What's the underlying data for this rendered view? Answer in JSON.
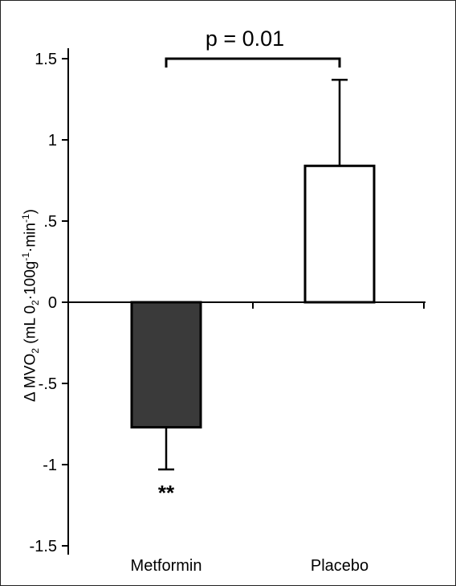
{
  "chart_data": {
    "type": "bar",
    "categories": [
      "Metformin",
      "Placebo"
    ],
    "values": [
      -0.77,
      0.84
    ],
    "error_bars": [
      0.26,
      0.53
    ],
    "bar_colors": [
      "#3a3a3a",
      "#ffffff"
    ],
    "ylim": [
      -1.5,
      1.5
    ],
    "yticks": [
      -1.5,
      -1,
      -0.5,
      0,
      0.5,
      1,
      1.5
    ],
    "ytick_labels": [
      "-1.5",
      "-1",
      "-.5",
      "0",
      ".5",
      "1",
      "1.5"
    ],
    "ylabel": {
      "prefix": "Δ MVO",
      "sub1": "2",
      "mid1": " (mL 0",
      "sub2": "2",
      "mid2": "·100g",
      "sup1": "-1",
      "mid3": "·min",
      "sup2": "-1",
      "suffix": ")"
    },
    "annotations": {
      "significance": "p = 0.01",
      "metformin_marker": "**"
    },
    "grid": false
  }
}
